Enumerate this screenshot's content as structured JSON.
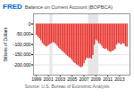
{
  "chart_data": {
    "type": "bar",
    "title": "Balance on Current Account (BOPBCA)",
    "ylabel": "Billions of Dollars",
    "annotations": [
      "FRED",
      "Source: U.S. Bureau of Economic Analysis"
    ],
    "x": [
      1999.0,
      1999.25,
      1999.5,
      1999.75,
      2000.0,
      2000.25,
      2000.5,
      2000.75,
      2001.0,
      2001.25,
      2001.5,
      2001.75,
      2002.0,
      2002.25,
      2002.5,
      2002.75,
      2003.0,
      2003.25,
      2003.5,
      2003.75,
      2004.0,
      2004.25,
      2004.5,
      2004.75,
      2005.0,
      2005.25,
      2005.5,
      2005.75,
      2006.0,
      2006.25,
      2006.5,
      2006.75,
      2007.0,
      2007.25,
      2007.5,
      2007.75,
      2008.0,
      2008.25,
      2008.5,
      2008.75,
      2009.0,
      2009.25,
      2009.5,
      2009.75,
      2010.0,
      2010.25,
      2010.5,
      2010.75,
      2011.0,
      2011.25,
      2011.5,
      2011.75,
      2012.0,
      2012.25,
      2012.5,
      2012.75,
      2013.0,
      2013.25,
      2013.5,
      2013.75,
      2014.0,
      2014.25
    ],
    "values": [
      -54000,
      -63000,
      -72000,
      -83000,
      -95000,
      -102000,
      -110000,
      -112000,
      -105000,
      -100000,
      -96000,
      -91000,
      -93000,
      -99000,
      -109000,
      -119000,
      -124000,
      -131000,
      -138000,
      -145000,
      -152000,
      -159000,
      -164000,
      -170000,
      -178000,
      -188000,
      -194000,
      -200000,
      -204000,
      -210000,
      -214000,
      -209000,
      -195000,
      -178000,
      -167000,
      -170000,
      -167000,
      -172000,
      -154000,
      -104000,
      -78000,
      -84000,
      -96000,
      -99000,
      -109000,
      -120000,
      -124000,
      -122000,
      -130000,
      -135000,
      -139000,
      -133000,
      -130000,
      -124000,
      -103000,
      -95000,
      -97000,
      -102000,
      -96000,
      -98000,
      -111000,
      -113000
    ],
    "color": "#e8302a",
    "xlim": [
      1998.5,
      2014.75
    ],
    "xticks": [
      1999,
      2001,
      2003,
      2005,
      2007,
      2009,
      2011,
      2013
    ],
    "ylim": [
      -250000,
      50000
    ],
    "yticks": [
      {
        "value": -200000,
        "label": "-200,000"
      },
      {
        "value": -150000,
        "label": "-150,000"
      },
      {
        "value": -100000,
        "label": "-100,000"
      },
      {
        "value": -50000,
        "label": "-50,000"
      },
      0
    ],
    "grid": true,
    "recession_bands": [
      [
        2001.25,
        2001.75
      ],
      [
        2007.75,
        2009.5
      ]
    ]
  }
}
